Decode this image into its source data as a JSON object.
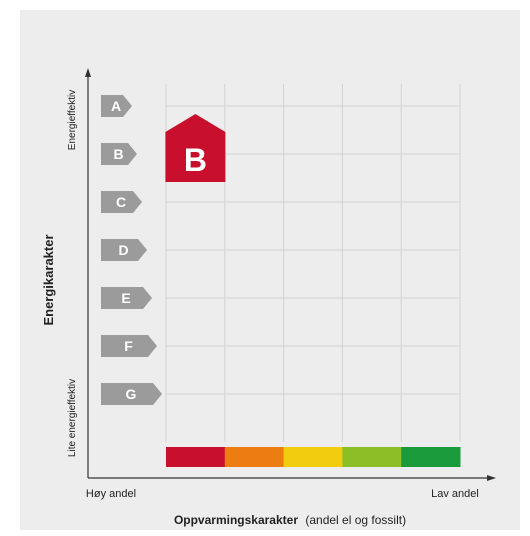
{
  "chart_data": {
    "type": "table",
    "ylabel": "Energikarakter",
    "y_top_label": "Energieffektiv",
    "y_bottom_label": "Lite energieffektiv",
    "xlabel_bold": "Oppvarmingskarakter",
    "xlabel_rest": "(andel el og fossilt)",
    "x_left_label": "Høy andel",
    "x_right_label": "Lav andel",
    "energy_grades": [
      "A",
      "B",
      "C",
      "D",
      "E",
      "F",
      "G"
    ],
    "grade_colors": [
      "#9b9b9b",
      "#9b9b9b",
      "#9b9b9b",
      "#9b9b9b",
      "#9b9b9b",
      "#9b9b9b",
      "#9b9b9b"
    ],
    "heating_scale_colors": [
      "#c8102e",
      "#ee7d11",
      "#f2cc0f",
      "#8cbf26",
      "#1a9a3a"
    ],
    "rating": {
      "energy_grade": "B",
      "heating_level": 1,
      "color": "#c8102e"
    },
    "grid": true
  }
}
